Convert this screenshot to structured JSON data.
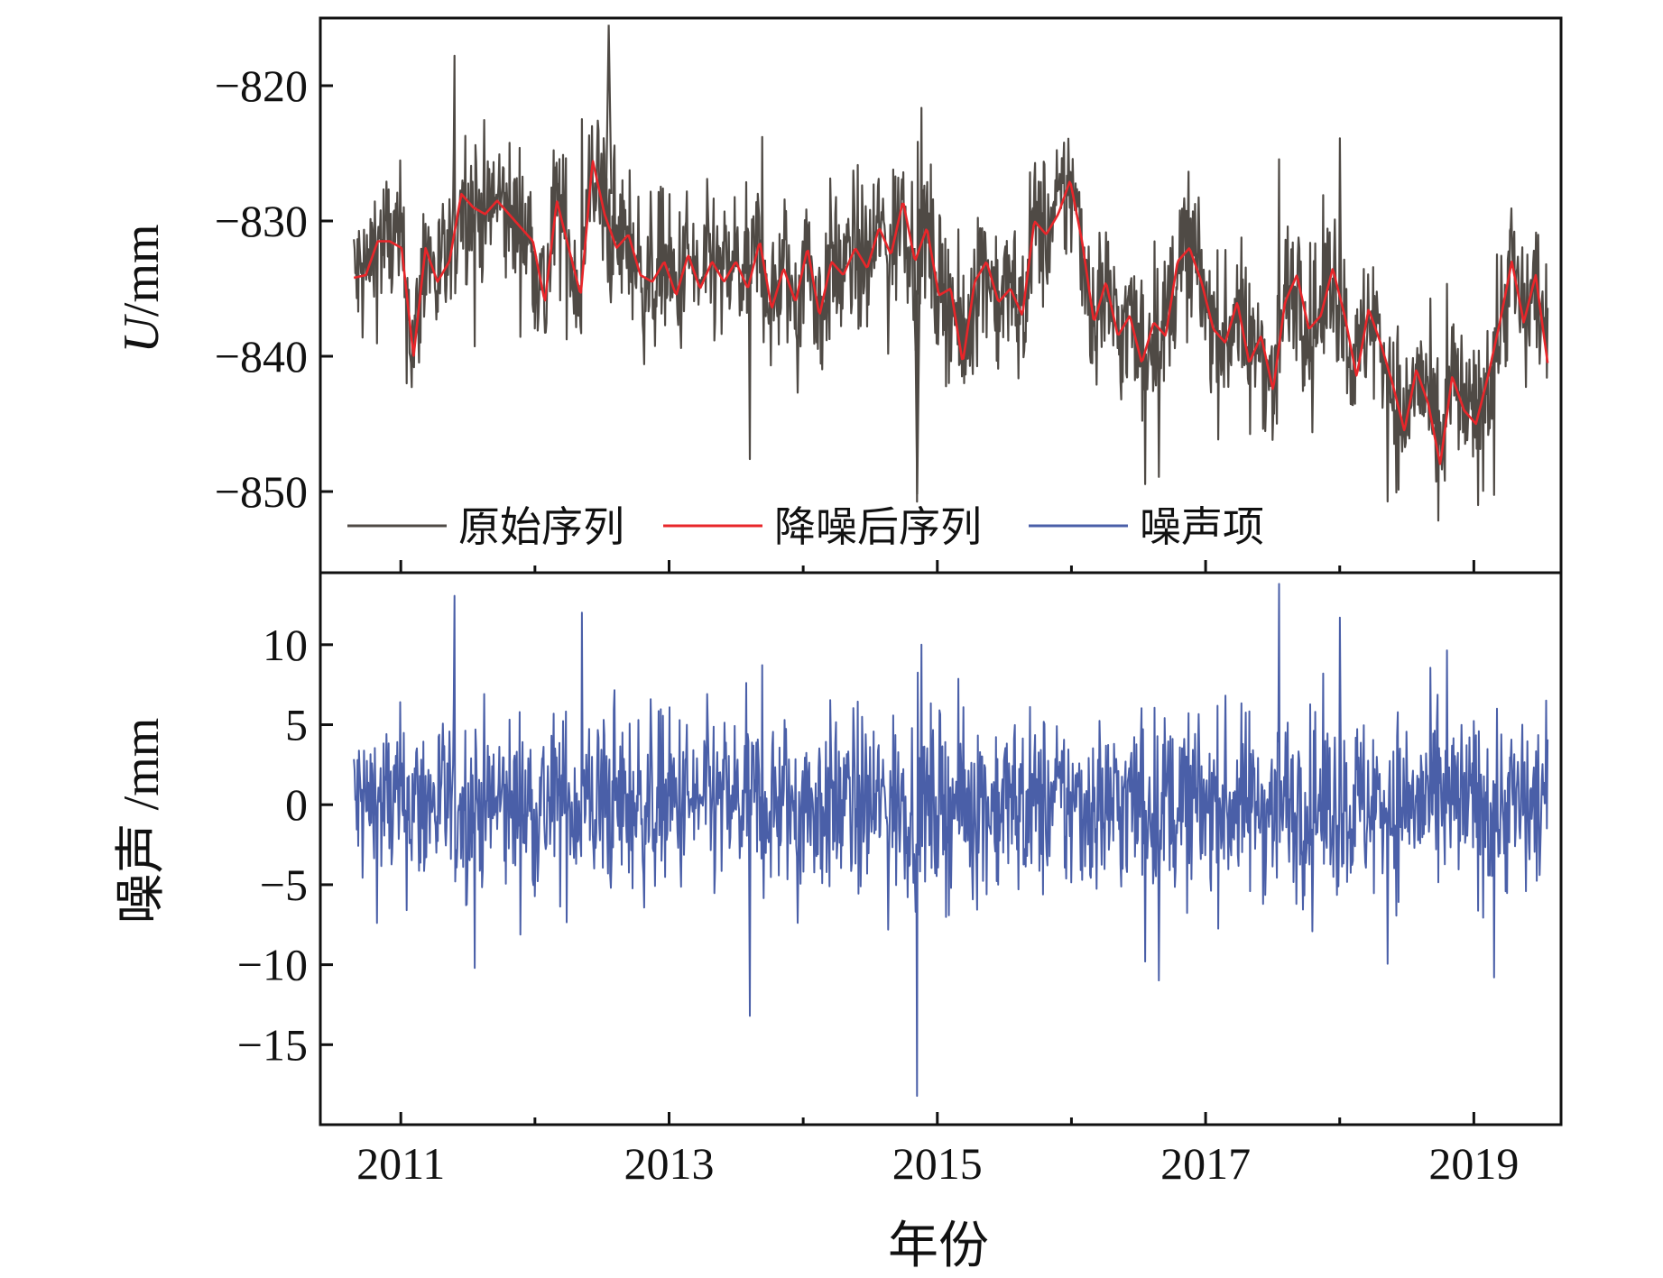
{
  "chart_data": [
    {
      "type": "line",
      "ylabel_italic": "U",
      "ylabel_rest": "/mm",
      "xlim": [
        2010.4,
        2019.65
      ],
      "ylim": [
        -856,
        -815
      ],
      "yticks": [
        -820,
        -830,
        -840,
        -850
      ],
      "ytick_labels": [
        "−820",
        "−830",
        "−840",
        "−850"
      ],
      "grid": false,
      "legend_position": "bottom-left",
      "legend": [
        "原始序列",
        "降噪后序列",
        "噪声项"
      ],
      "series": [
        {
          "name": "原始序列",
          "color": "#4f4a45",
          "kind": "raw",
          "x": [
            2010.65,
            2010.9,
            2011.1,
            2011.4,
            2011.75,
            2012.05,
            2012.25,
            2012.45,
            2012.55,
            2012.75,
            2012.95,
            2013.2,
            2013.6,
            2013.9,
            2014.2,
            2014.45,
            2014.7,
            2015.0,
            2015.3,
            2015.55,
            2015.8,
            2016.0,
            2016.25,
            2016.5,
            2016.75,
            2017.0,
            2017.3,
            2017.55,
            2017.8,
            2018.0,
            2018.25,
            2018.5,
            2018.7,
            2018.9,
            2019.1,
            2019.35,
            2019.55
          ],
          "values": [
            -830,
            -832,
            -836,
            -831,
            -830,
            -833,
            -832,
            -833,
            -829,
            -832,
            -831,
            -834,
            -835,
            -834,
            -835,
            -833,
            -832,
            -831,
            -839,
            -835,
            -836,
            -831,
            -835,
            -839,
            -837,
            -832,
            -838,
            -842,
            -840,
            -835,
            -842,
            -844,
            -846,
            -845,
            -837,
            -835,
            -841
          ]
        },
        {
          "name": "降噪后序列",
          "color": "#e8262a",
          "values": [
            -834.2,
            -834.0,
            -831.5,
            -831.5,
            -832.0,
            -840.0,
            -832.0,
            -834.5,
            -833.0,
            -828.0,
            -829.0,
            -829.5,
            -828.5,
            -829.5,
            -830.5,
            -831.5,
            -836.0,
            -828.5,
            -832.0,
            -835.5,
            -825.5,
            -829.5,
            -832.0,
            -831.0,
            -834.0,
            -834.5,
            -833.0,
            -835.5,
            -832.5,
            -835.0,
            -833.0,
            -834.5,
            -833.0,
            -835.0,
            -831.5,
            -836.5,
            -833.5,
            -836.0,
            -832.0,
            -837.0,
            -833.0,
            -834.0,
            -832.0,
            -833.5,
            -830.5,
            -832.5,
            -828.5,
            -833.0,
            -830.5,
            -835.5,
            -835.0,
            -840.5,
            -834.5,
            -833.0,
            -836.0,
            -835.0,
            -837.0,
            -830.0,
            -831.0,
            -829.5,
            -827.0,
            -831.5,
            -837.5,
            -834.5,
            -838.5,
            -837.0,
            -840.5,
            -837.5,
            -838.5,
            -833.0,
            -832.0,
            -834.5,
            -838.0,
            -839.0,
            -836.0,
            -840.5,
            -838.5,
            -842.5,
            -836.0,
            -834.0,
            -838.0,
            -837.0,
            -833.5,
            -837.0,
            -841.5,
            -836.5,
            -839.0,
            -842.0,
            -845.5,
            -841.0,
            -843.5,
            -848.0,
            -841.5,
            -844.0,
            -845.0,
            -841.5,
            -837.5,
            -833.0,
            -837.5,
            -834.0,
            -840.5
          ],
          "x_start": 2010.65,
          "x_end": 2019.55
        }
      ]
    },
    {
      "type": "line",
      "ylabel": "噪声 /mm",
      "xlabel": "年份",
      "xlim": [
        2010.4,
        2019.65
      ],
      "ylim": [
        -20,
        14.5
      ],
      "xticks": [
        2011,
        2013,
        2015,
        2017,
        2019
      ],
      "xtick_labels": [
        "2011",
        "2013",
        "2015",
        "2017",
        "2019"
      ],
      "yticks": [
        10,
        5,
        0,
        -5,
        -10,
        -15
      ],
      "ytick_labels": [
        "10",
        "5",
        "0",
        "−5",
        "−10",
        "−15"
      ],
      "grid": false,
      "series": [
        {
          "name": "噪声项",
          "color": "#4a5fa8",
          "kind": "noise",
          "x_start": 2010.65,
          "x_end": 2019.55,
          "amplitude_sd": 2.8,
          "min": -18.2,
          "max": 13.8
        }
      ]
    }
  ]
}
